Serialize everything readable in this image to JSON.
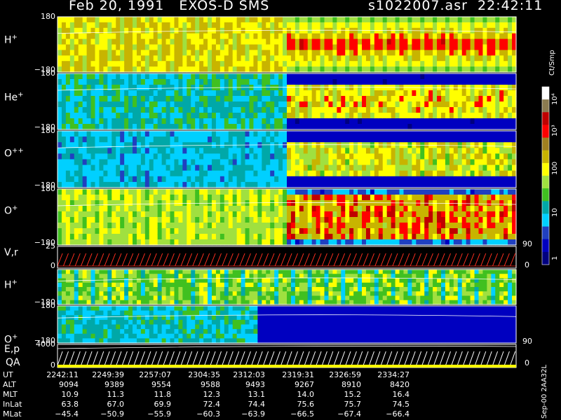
{
  "header": {
    "date": "Feb 20, 1991",
    "instrument": "EXOS-D SMS",
    "file": "s1022007.asr",
    "time": "22:42:11"
  },
  "panels": [
    {
      "name": "H+",
      "base": "H",
      "sup": "+",
      "ytop": "180",
      "ybot": "−180",
      "kind": "spec"
    },
    {
      "name": "He+",
      "base": "He",
      "sup": "+",
      "ytop": "180",
      "ybot": "−180",
      "kind": "spec"
    },
    {
      "name": "O++",
      "base": "O",
      "sup": "++",
      "ytop": "180",
      "ybot": "−180",
      "kind": "spec"
    },
    {
      "name": "O+",
      "base": "O",
      "sup": "+",
      "ytop": "180",
      "ybot": "−180",
      "kind": "spec"
    },
    {
      "name": "V,r",
      "base": "V,r",
      "sup": "",
      "ytop": "25",
      "ybot": "0",
      "kind": "line"
    },
    {
      "name": "H+",
      "base": "H",
      "sup": "+",
      "ytop": "",
      "ybot": "−180",
      "kind": "spec2"
    },
    {
      "name": "O+",
      "base": "O",
      "sup": "+",
      "ytop": "180",
      "ybot": "−180",
      "kind": "spec2"
    },
    {
      "name": "E,p",
      "base": "E,p",
      "sup": "",
      "ytop": "4000",
      "ybot": "0",
      "kind": "line2",
      "sub": "QA"
    }
  ],
  "colorbar": {
    "unit": "Ct/Smp",
    "ticks": [
      "10⁴",
      "10³",
      "100",
      "10",
      "1"
    ],
    "colors": [
      "#ffffff",
      "#8b7b50",
      "#c00000",
      "#ff0000",
      "#a08020",
      "#c8b400",
      "#ffff00",
      "#a0e040",
      "#40c020",
      "#00a8a8",
      "#00d0ff",
      "#2040c0",
      "#0000c0",
      "#000080"
    ]
  },
  "right_labels": {
    "r90a": "90",
    "r0a": "0",
    "r90b": "90",
    "r0b": "0"
  },
  "footer": {
    "rows": [
      {
        "label": "UT",
        "values": [
          "2242:11",
          "2249:39",
          "2257:07",
          "2304:35",
          "2312:03",
          "2319:31",
          "2326:59",
          "2334:27"
        ]
      },
      {
        "label": "ALT",
        "values": [
          "9094",
          "9389",
          "9554",
          "9588",
          "9493",
          "9267",
          "8910",
          "8420"
        ]
      },
      {
        "label": "MLT",
        "values": [
          "10.9",
          "11.3",
          "11.8",
          "12.3",
          "13.1",
          "14.0",
          "15.2",
          "16.4"
        ]
      },
      {
        "label": "InLat",
        "values": [
          "63.8",
          "67.0",
          "69.9",
          "72.4",
          "74.4",
          "75.6",
          "75.7",
          "74.5"
        ]
      },
      {
        "label": "MLat",
        "values": [
          "−45.4",
          "−50.9",
          "−55.9",
          "−60.3",
          "−63.9",
          "−66.5",
          "−67.4",
          "−66.4"
        ]
      }
    ],
    "stamp": "Sep-00 2AA32L"
  },
  "chart_data": {
    "type": "heatmap",
    "title": "Feb 20, 1991   EXOS-D SMS",
    "x": [
      "2242:11",
      "2249:39",
      "2257:07",
      "2304:35",
      "2312:03",
      "2319:31",
      "2326:59",
      "2334:27"
    ],
    "panels": [
      "H+",
      "He+",
      "O++",
      "O+",
      "V,r",
      "H+",
      "O+",
      "E,p"
    ],
    "colorbar_label": "Ct/Smp",
    "colorbar_scale": "log",
    "colorbar_range": [
      1,
      10000
    ]
  }
}
